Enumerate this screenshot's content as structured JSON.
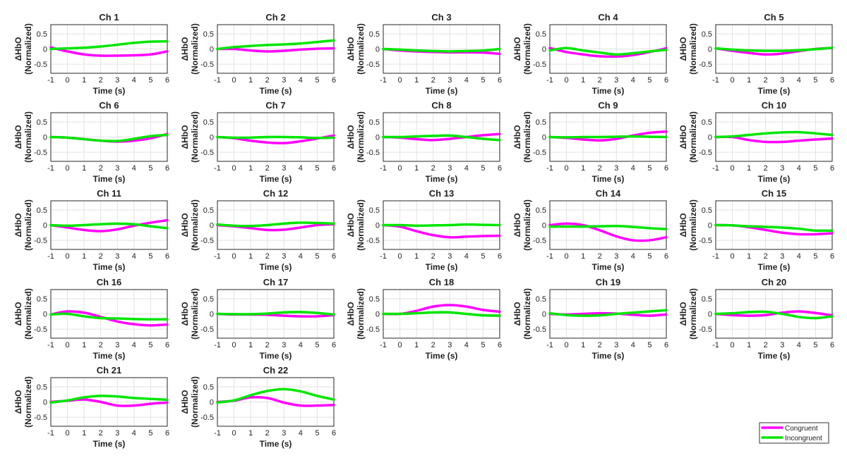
{
  "figure_meta": {
    "colors": {
      "Congruent": "#ff00ff",
      "Incongruent": "#00e600"
    }
  },
  "legend": {
    "items": [
      "Congruent",
      "Incongruent"
    ]
  },
  "chart_data": {
    "type": "line",
    "ylabel_line1": "ΔHbO",
    "ylabel_line2": "(Normalized)",
    "xlabel": "Time (s)",
    "xlim": [
      -1,
      6
    ],
    "ylim": [
      -0.8,
      0.8
    ],
    "xticks": [
      -1,
      0,
      1,
      2,
      3,
      4,
      5,
      6
    ],
    "yticks": [
      0.5,
      0,
      -0.5
    ],
    "ytick_labels": [
      "0.5",
      "0",
      "-0.5"
    ],
    "x": [
      -1,
      0,
      1,
      2,
      3,
      4,
      5,
      6
    ],
    "panels": [
      {
        "title": "Ch 1",
        "series": [
          {
            "name": "Congruent",
            "values": [
              0.05,
              -0.08,
              -0.18,
              -0.22,
              -0.22,
              -0.21,
              -0.18,
              -0.08
            ]
          },
          {
            "name": "Incongruent",
            "values": [
              0.0,
              0.02,
              0.04,
              0.08,
              0.14,
              0.2,
              0.24,
              0.25
            ]
          }
        ]
      },
      {
        "title": "Ch 2",
        "series": [
          {
            "name": "Congruent",
            "values": [
              0.0,
              0.0,
              -0.05,
              -0.08,
              -0.06,
              -0.02,
              0.01,
              0.02
            ]
          },
          {
            "name": "Incongruent",
            "values": [
              0.0,
              0.06,
              0.1,
              0.13,
              0.15,
              0.18,
              0.23,
              0.28
            ]
          }
        ]
      },
      {
        "title": "Ch 3",
        "series": [
          {
            "name": "Congruent",
            "values": [
              0.0,
              -0.05,
              -0.08,
              -0.1,
              -0.11,
              -0.11,
              -0.12,
              -0.16
            ]
          },
          {
            "name": "Incongruent",
            "values": [
              0.0,
              -0.02,
              -0.05,
              -0.07,
              -0.08,
              -0.07,
              -0.05,
              0.0
            ]
          }
        ]
      },
      {
        "title": "Ch 4",
        "series": [
          {
            "name": "Congruent",
            "values": [
              0.03,
              -0.1,
              -0.18,
              -0.24,
              -0.25,
              -0.2,
              -0.1,
              0.02
            ]
          },
          {
            "name": "Incongruent",
            "values": [
              -0.05,
              0.03,
              -0.05,
              -0.12,
              -0.18,
              -0.14,
              -0.08,
              -0.03
            ]
          }
        ]
      },
      {
        "title": "Ch 5",
        "series": [
          {
            "name": "Congruent",
            "values": [
              0.02,
              -0.06,
              -0.13,
              -0.18,
              -0.15,
              -0.07,
              0.0,
              0.03
            ]
          },
          {
            "name": "Incongruent",
            "values": [
              0.02,
              -0.02,
              -0.05,
              -0.06,
              -0.06,
              -0.04,
              -0.01,
              0.04
            ]
          }
        ]
      },
      {
        "title": "Ch 6",
        "series": [
          {
            "name": "Congruent",
            "values": [
              0.0,
              -0.02,
              -0.07,
              -0.12,
              -0.15,
              -0.12,
              -0.04,
              0.1
            ]
          },
          {
            "name": "Incongruent",
            "values": [
              0.0,
              -0.02,
              -0.07,
              -0.12,
              -0.13,
              -0.06,
              0.03,
              0.07
            ]
          }
        ]
      },
      {
        "title": "Ch 7",
        "series": [
          {
            "name": "Congruent",
            "values": [
              0.0,
              -0.04,
              -0.12,
              -0.18,
              -0.2,
              -0.14,
              -0.05,
              0.05
            ]
          },
          {
            "name": "Incongruent",
            "values": [
              0.0,
              -0.02,
              -0.02,
              0.0,
              0.0,
              -0.01,
              -0.03,
              -0.02
            ]
          }
        ]
      },
      {
        "title": "Ch 8",
        "series": [
          {
            "name": "Congruent",
            "values": [
              0.0,
              -0.02,
              -0.07,
              -0.1,
              -0.06,
              0.0,
              0.06,
              0.1
            ]
          },
          {
            "name": "Incongruent",
            "values": [
              0.0,
              0.0,
              0.02,
              0.04,
              0.05,
              0.0,
              -0.06,
              -0.1
            ]
          }
        ]
      },
      {
        "title": "Ch 9",
        "series": [
          {
            "name": "Congruent",
            "values": [
              0.0,
              -0.03,
              -0.08,
              -0.11,
              -0.06,
              0.05,
              0.14,
              0.18
            ]
          },
          {
            "name": "Incongruent",
            "values": [
              0.0,
              -0.01,
              0.0,
              0.0,
              0.01,
              0.02,
              0.01,
              0.0
            ]
          }
        ]
      },
      {
        "title": "Ch 10",
        "series": [
          {
            "name": "Congruent",
            "values": [
              0.0,
              0.0,
              -0.1,
              -0.16,
              -0.16,
              -0.12,
              -0.08,
              -0.05
            ]
          },
          {
            "name": "Incongruent",
            "values": [
              0.0,
              0.02,
              0.07,
              0.12,
              0.15,
              0.16,
              0.12,
              0.07
            ]
          }
        ]
      },
      {
        "title": "Ch 11",
        "series": [
          {
            "name": "Congruent",
            "values": [
              0.0,
              -0.08,
              -0.16,
              -0.2,
              -0.14,
              -0.02,
              0.08,
              0.16
            ]
          },
          {
            "name": "Incongruent",
            "values": [
              0.0,
              -0.02,
              0.0,
              0.03,
              0.05,
              0.03,
              -0.04,
              -0.1
            ]
          }
        ]
      },
      {
        "title": "Ch 12",
        "series": [
          {
            "name": "Congruent",
            "values": [
              0.0,
              -0.04,
              -0.1,
              -0.16,
              -0.15,
              -0.08,
              0.0,
              0.03
            ]
          },
          {
            "name": "Incongruent",
            "values": [
              0.02,
              -0.02,
              -0.03,
              0.0,
              0.05,
              0.08,
              0.07,
              0.05
            ]
          }
        ]
      },
      {
        "title": "Ch 13",
        "series": [
          {
            "name": "Congruent",
            "values": [
              0.0,
              -0.05,
              -0.2,
              -0.33,
              -0.4,
              -0.38,
              -0.36,
              -0.35
            ]
          },
          {
            "name": "Incongruent",
            "values": [
              0.0,
              0.0,
              -0.02,
              -0.01,
              0.0,
              0.02,
              0.01,
              0.0
            ]
          }
        ]
      },
      {
        "title": "Ch 14",
        "series": [
          {
            "name": "Congruent",
            "values": [
              0.0,
              0.05,
              0.0,
              -0.17,
              -0.37,
              -0.5,
              -0.5,
              -0.4
            ]
          },
          {
            "name": "Incongruent",
            "values": [
              -0.05,
              -0.05,
              -0.05,
              -0.04,
              -0.03,
              -0.06,
              -0.1,
              -0.13
            ]
          }
        ]
      },
      {
        "title": "Ch 15",
        "series": [
          {
            "name": "Congruent",
            "values": [
              0.0,
              -0.01,
              -0.07,
              -0.16,
              -0.25,
              -0.3,
              -0.3,
              -0.27
            ]
          },
          {
            "name": "Incongruent",
            "values": [
              0.0,
              -0.01,
              -0.04,
              -0.06,
              -0.08,
              -0.12,
              -0.18,
              -0.18
            ]
          }
        ]
      },
      {
        "title": "Ch 16",
        "series": [
          {
            "name": "Congruent",
            "values": [
              -0.02,
              0.08,
              0.04,
              -0.1,
              -0.25,
              -0.34,
              -0.38,
              -0.35
            ]
          },
          {
            "name": "Incongruent",
            "values": [
              -0.02,
              0.0,
              -0.08,
              -0.14,
              -0.15,
              -0.17,
              -0.18,
              -0.18
            ]
          }
        ]
      },
      {
        "title": "Ch 17",
        "series": [
          {
            "name": "Congruent",
            "values": [
              0.0,
              -0.02,
              -0.02,
              -0.03,
              -0.06,
              -0.08,
              -0.08,
              -0.04
            ]
          },
          {
            "name": "Incongruent",
            "values": [
              0.0,
              -0.01,
              -0.01,
              0.01,
              0.05,
              0.06,
              0.03,
              -0.02
            ]
          }
        ]
      },
      {
        "title": "Ch 18",
        "series": [
          {
            "name": "Congruent",
            "values": [
              0.0,
              0.0,
              0.1,
              0.24,
              0.29,
              0.24,
              0.13,
              0.07
            ]
          },
          {
            "name": "Incongruent",
            "values": [
              0.0,
              0.0,
              0.02,
              0.05,
              0.05,
              0.0,
              -0.05,
              -0.06
            ]
          }
        ]
      },
      {
        "title": "Ch 19",
        "series": [
          {
            "name": "Congruent",
            "values": [
              0.0,
              -0.02,
              0.0,
              0.02,
              0.01,
              -0.03,
              -0.06,
              -0.02
            ]
          },
          {
            "name": "Incongruent",
            "values": [
              0.02,
              -0.04,
              -0.06,
              -0.05,
              0.0,
              0.04,
              0.08,
              0.12
            ]
          }
        ]
      },
      {
        "title": "Ch 20",
        "series": [
          {
            "name": "Congruent",
            "values": [
              0.0,
              -0.04,
              -0.06,
              -0.04,
              0.04,
              0.08,
              0.03,
              -0.05
            ]
          },
          {
            "name": "Incongruent",
            "values": [
              0.0,
              0.02,
              0.06,
              0.07,
              0.0,
              -0.1,
              -0.14,
              -0.08
            ]
          }
        ]
      },
      {
        "title": "Ch 21",
        "series": [
          {
            "name": "Congruent",
            "values": [
              0.0,
              0.04,
              0.08,
              0.0,
              -0.12,
              -0.12,
              -0.06,
              -0.02
            ]
          },
          {
            "name": "Incongruent",
            "values": [
              -0.02,
              0.05,
              0.15,
              0.2,
              0.18,
              0.13,
              0.1,
              0.07
            ]
          }
        ]
      },
      {
        "title": "Ch 22",
        "series": [
          {
            "name": "Congruent",
            "values": [
              0.0,
              0.04,
              0.15,
              0.13,
              -0.02,
              -0.12,
              -0.12,
              -0.1
            ]
          },
          {
            "name": "Incongruent",
            "values": [
              -0.02,
              0.05,
              0.22,
              0.36,
              0.42,
              0.35,
              0.2,
              0.08
            ]
          }
        ]
      }
    ]
  }
}
